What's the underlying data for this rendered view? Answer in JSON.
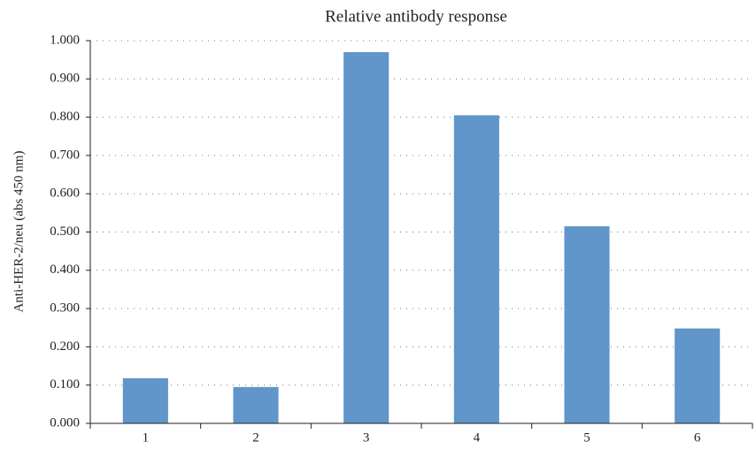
{
  "chart_data": {
    "type": "bar",
    "title": "Relative antibody response",
    "y_label": "Anti-HER-2/neu (abs 450 nm)",
    "categories": [
      "1",
      "2",
      "3",
      "4",
      "5",
      "6"
    ],
    "values": [
      0.118,
      0.095,
      0.97,
      0.805,
      0.515,
      0.248
    ],
    "color": "#6096ca",
    "ylim": [
      0,
      1
    ],
    "yticks": [
      {
        "value": 0,
        "label": "0.000"
      },
      {
        "value": 0.1,
        "label": "0.100"
      },
      {
        "value": 0.2,
        "label": "0.200"
      },
      {
        "value": 0.3,
        "label": "0.300"
      },
      {
        "value": 0.4,
        "label": "0.400"
      },
      {
        "value": 0.5,
        "label": "0.500"
      },
      {
        "value": 0.6,
        "label": "0.600"
      },
      {
        "value": 0.7,
        "label": "0.700"
      },
      {
        "value": 0.8,
        "label": "0.800"
      },
      {
        "value": 0.9,
        "label": "0.900"
      },
      {
        "value": 1,
        "label": "1.000"
      }
    ],
    "grid": true
  }
}
